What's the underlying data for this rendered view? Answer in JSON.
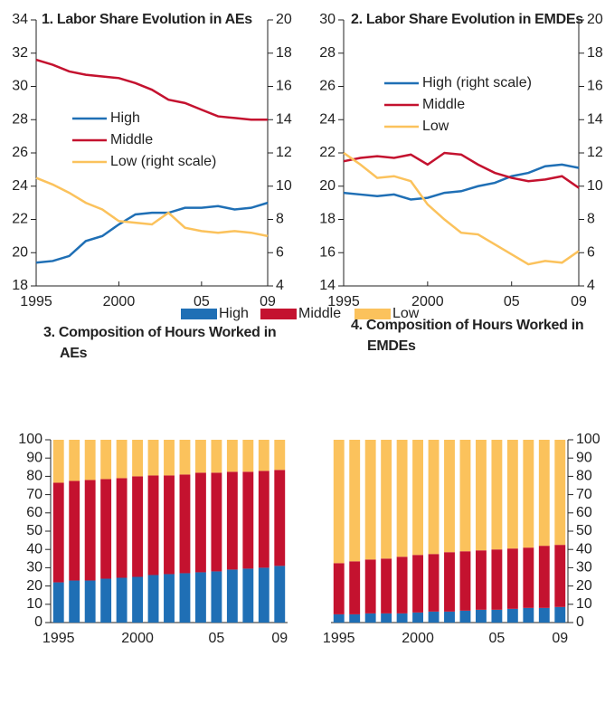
{
  "chart_data": [
    {
      "type": "line",
      "title": "1. Labor Share Evolution in AEs",
      "x": [
        1995,
        1996,
        1997,
        1998,
        1999,
        2000,
        2001,
        2002,
        2003,
        2004,
        2005,
        2006,
        2007,
        2008,
        2009
      ],
      "xlim": [
        1995,
        2009
      ],
      "xticks": [
        1995,
        2000,
        {
          "value": 2005,
          "label": "05"
        },
        {
          "value": 2009,
          "label": "09"
        }
      ],
      "ylim": [
        18,
        34
      ],
      "yticks": [
        18,
        20,
        22,
        24,
        26,
        28,
        30,
        32,
        34
      ],
      "y2lim": [
        4,
        20
      ],
      "y2ticks": [
        4,
        6,
        8,
        10,
        12,
        14,
        16,
        18,
        20
      ],
      "series": [
        {
          "name": "High",
          "color": "#1f6fb5",
          "values": [
            19.4,
            19.5,
            19.8,
            20.7,
            21.0,
            21.7,
            22.3,
            22.4,
            22.4,
            22.7,
            22.7,
            22.8,
            22.6,
            22.7,
            23.0
          ]
        },
        {
          "name": "Middle",
          "color": "#c4122f",
          "values": [
            31.6,
            31.3,
            30.9,
            30.7,
            30.6,
            30.5,
            30.2,
            29.8,
            29.2,
            29.0,
            28.6,
            28.2,
            28.1,
            28.0,
            28.0
          ]
        },
        {
          "name": "Low (right scale)",
          "color": "#fbc25c",
          "axis": "y2",
          "values": [
            10.5,
            10.1,
            9.6,
            9.0,
            8.6,
            7.9,
            7.8,
            7.7,
            8.4,
            7.5,
            7.3,
            7.2,
            7.3,
            7.2,
            7.0
          ]
        }
      ],
      "legend": "center-left"
    },
    {
      "type": "line",
      "title": "2. Labor Share Evolution in EMDEs",
      "x": [
        1995,
        1996,
        1997,
        1998,
        1999,
        2000,
        2001,
        2002,
        2003,
        2004,
        2005,
        2006,
        2007,
        2008,
        2009
      ],
      "xlim": [
        1995,
        2009
      ],
      "xticks": [
        1995,
        2000,
        {
          "value": 2005,
          "label": "05"
        },
        {
          "value": 2009,
          "label": "09"
        }
      ],
      "ylim": [
        14,
        30
      ],
      "yticks": [
        14,
        16,
        18,
        20,
        22,
        24,
        26,
        28,
        30
      ],
      "y2lim": [
        4,
        20
      ],
      "y2ticks": [
        4,
        6,
        8,
        10,
        12,
        14,
        16,
        18,
        20
      ],
      "series": [
        {
          "name": "High (right scale)",
          "color": "#1f6fb5",
          "axis": "y2",
          "values": [
            9.6,
            9.5,
            9.4,
            9.5,
            9.2,
            9.3,
            9.6,
            9.7,
            10.0,
            10.2,
            10.6,
            10.8,
            11.2,
            11.3,
            11.1
          ]
        },
        {
          "name": "Middle",
          "color": "#c4122f",
          "values": [
            21.5,
            21.7,
            21.8,
            21.7,
            21.9,
            21.3,
            22.0,
            21.9,
            21.3,
            20.8,
            20.5,
            20.3,
            20.4,
            20.6,
            19.9
          ]
        },
        {
          "name": "Low",
          "color": "#fbc25c",
          "values": [
            22.0,
            21.3,
            20.5,
            20.6,
            20.3,
            18.9,
            18.0,
            17.2,
            17.1,
            16.5,
            15.9,
            15.3,
            15.5,
            15.4,
            16.1
          ]
        }
      ],
      "legend": "upper-center"
    },
    {
      "type": "bar",
      "stacked": true,
      "title": "3. Composition of Hours Worked in AEs",
      "x": [
        1995,
        1996,
        1997,
        1998,
        1999,
        2000,
        2001,
        2002,
        2003,
        2004,
        2005,
        2006,
        2007,
        2008,
        2009
      ],
      "xlim": [
        1994.5,
        2009.5
      ],
      "xticks": [
        1995,
        2000,
        {
          "value": 2005,
          "label": "05"
        },
        {
          "value": 2009,
          "label": "09"
        }
      ],
      "ylim": [
        0,
        100
      ],
      "yticks": [
        0,
        10,
        20,
        30,
        40,
        50,
        60,
        70,
        80,
        90,
        100
      ],
      "y_axis_side": "left",
      "series": [
        {
          "color": "#1f6fb5",
          "values": [
            22,
            23,
            23,
            24,
            24.5,
            25,
            26,
            26.5,
            27,
            27.5,
            28,
            29,
            29.5,
            30,
            31
          ]
        },
        {
          "color": "#c4122f",
          "values": [
            54.5,
            54.5,
            55,
            54.5,
            54.5,
            55,
            54.5,
            54,
            54,
            54.5,
            54,
            53.5,
            53,
            53,
            52.5
          ]
        },
        {
          "color": "#fbc25c",
          "values": [
            23.5,
            22.5,
            22,
            21.5,
            21,
            20,
            19.5,
            19.5,
            19,
            18,
            18,
            17.5,
            17.5,
            17,
            16.5
          ]
        }
      ]
    },
    {
      "type": "bar",
      "stacked": true,
      "title": "4. Composition of Hours Worked in EMDEs",
      "x": [
        1995,
        1996,
        1997,
        1998,
        1999,
        2000,
        2001,
        2002,
        2003,
        2004,
        2005,
        2006,
        2007,
        2008,
        2009
      ],
      "xlim": [
        1994.5,
        2009.5
      ],
      "xticks": [
        1995,
        2000,
        {
          "value": 2005,
          "label": "05"
        },
        {
          "value": 2009,
          "label": "09"
        }
      ],
      "ylim": [
        0,
        100
      ],
      "yticks": [
        0,
        10,
        20,
        30,
        40,
        50,
        60,
        70,
        80,
        90,
        100
      ],
      "y_axis_side": "right",
      "series": [
        {
          "name": "High",
          "color": "#1f6fb5",
          "values": [
            4.5,
            4.5,
            5,
            5,
            5,
            5.5,
            6,
            6,
            6.5,
            7,
            7,
            7.5,
            8,
            8,
            8.5
          ]
        },
        {
          "name": "Middle",
          "color": "#c4122f",
          "values": [
            28,
            29,
            29.5,
            30,
            31,
            31.5,
            31.5,
            32.5,
            32.5,
            32.5,
            33,
            33,
            33,
            34,
            34
          ]
        },
        {
          "name": "Low",
          "color": "#fbc25c",
          "values": [
            67.5,
            66.5,
            65.5,
            65,
            64,
            63,
            62.5,
            61.5,
            61,
            60.5,
            60,
            59.5,
            59,
            58,
            57.5
          ]
        }
      ],
      "legend": "top-shared"
    }
  ]
}
